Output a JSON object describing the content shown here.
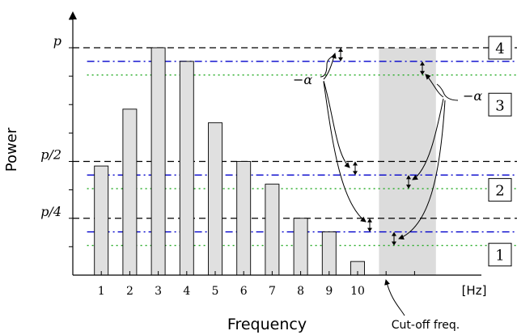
{
  "chart_data": {
    "type": "bar",
    "title": "",
    "xlabel": "Frequency",
    "ylabel": "Power",
    "x_unit": "[Hz]",
    "categories": [
      "1",
      "2",
      "3",
      "4",
      "5",
      "6",
      "7",
      "8",
      "9",
      "10"
    ],
    "values": [
      0.48,
      0.73,
      1.0,
      0.94,
      0.67,
      0.5,
      0.4,
      0.25,
      0.19,
      0.06
    ],
    "bar_color": "#e0e0e0",
    "ylim": [
      -0.1,
      1.2
    ],
    "y_tick_labels": [
      {
        "label": "p",
        "value": 1.0
      },
      {
        "label": "p/2",
        "value": 0.5
      },
      {
        "label": "p/4",
        "value": 0.25
      }
    ],
    "reference_lines": [
      {
        "value": 1.0,
        "style": "dashed",
        "color": "#000000"
      },
      {
        "value": 0.94,
        "style": "dashdot",
        "color": "#0000cc"
      },
      {
        "value": 0.88,
        "style": "dotted",
        "color": "#22aa22"
      },
      {
        "value": 0.5,
        "style": "dashed",
        "color": "#000000"
      },
      {
        "value": 0.44,
        "style": "dashdot",
        "color": "#0000cc"
      },
      {
        "value": 0.38,
        "style": "dotted",
        "color": "#22aa22"
      },
      {
        "value": 0.25,
        "style": "dashed",
        "color": "#000000"
      },
      {
        "value": 0.19,
        "style": "dashdot",
        "color": "#0000cc"
      },
      {
        "value": 0.13,
        "style": "dotted",
        "color": "#22aa22"
      }
    ],
    "bands": [
      "4",
      "3",
      "2",
      "1"
    ],
    "cutoff_region": {
      "x_start": 10.75,
      "x_end": 12.75,
      "color": "#dcdcdc"
    },
    "annotations": {
      "alpha_left": "−α",
      "alpha_right": "−α",
      "cutoff": "Cut-off freq."
    }
  }
}
